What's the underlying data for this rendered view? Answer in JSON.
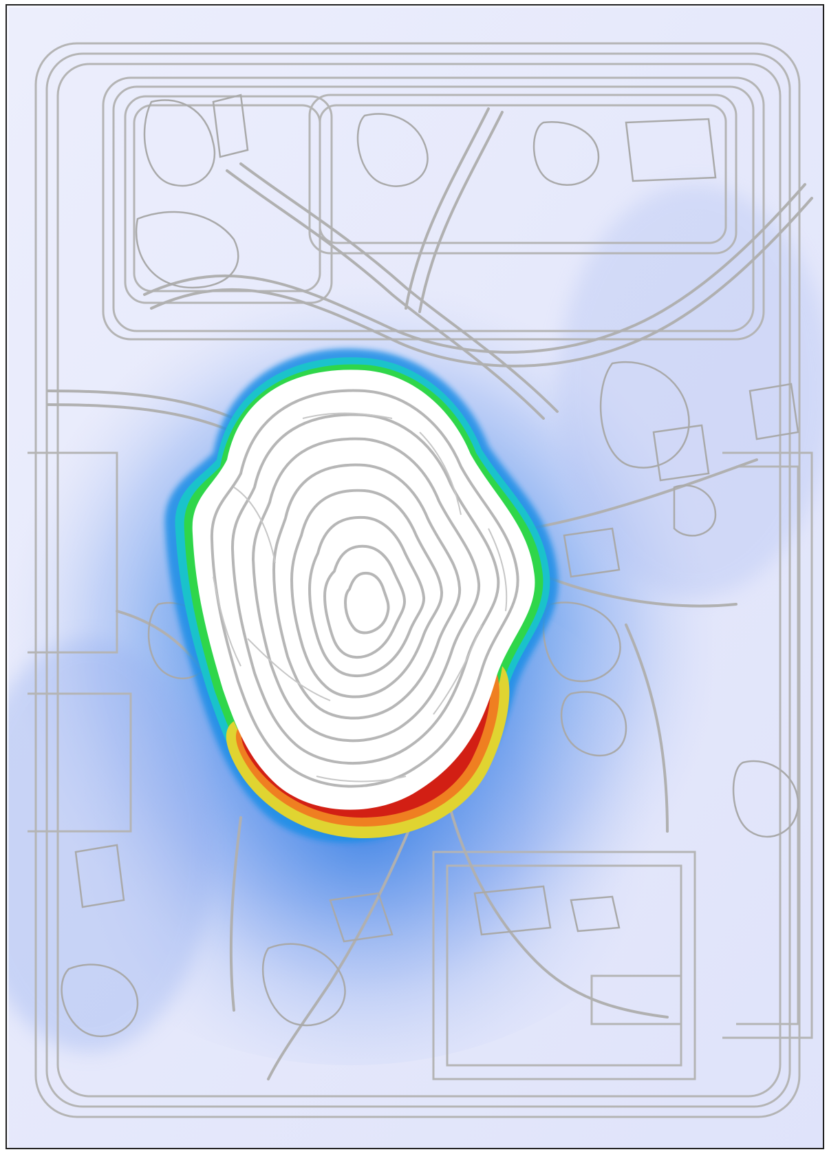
{
  "map": {
    "type": "open-pit mine contour map with heatmap overlay",
    "legend": "none",
    "labels": [],
    "colors": {
      "background": "#e7e9fb",
      "contour": "#b4b4b4",
      "pit_interior": "#ffffff",
      "low": "#c9d4f5",
      "mid": "#2f7fe6",
      "cyan": "#18c8c8",
      "green": "#2fd64a",
      "yellow": "#e0d431",
      "orange": "#ef7f21",
      "red": "#d21f14"
    }
  }
}
